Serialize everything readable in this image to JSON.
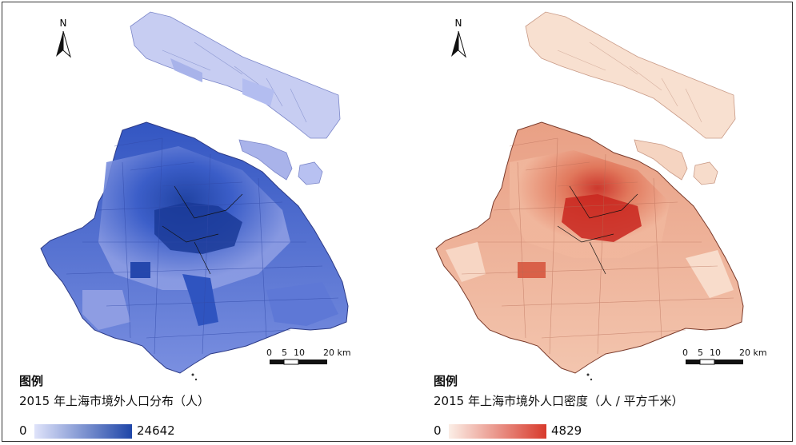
{
  "left_panel": {
    "legend_title": "图例",
    "legend_subtitle": "2015 年上海市境外人口分布（人）",
    "legend_min": "0",
    "legend_max": "24642",
    "ramp_start": "#dfe3fa",
    "ramp_end": "#1f46a8",
    "scale_labels": [
      "0",
      "5",
      "10",
      "20 km"
    ],
    "north_label": "N"
  },
  "right_panel": {
    "legend_title": "图例",
    "legend_subtitle": "2015 年上海市境外人口密度（人 / 平方千米）",
    "legend_min": "0",
    "legend_max": "4829",
    "ramp_start": "#fbeee6",
    "ramp_end": "#d83a2c",
    "scale_labels": [
      "0",
      "5",
      "10",
      "20 km"
    ],
    "north_label": "N"
  },
  "colors": {
    "blue_light": "#c5cbf1",
    "blue_mid": "#6f84dc",
    "blue_dark": "#1f46a8",
    "red_light": "#f9e3d6",
    "red_mid": "#e8a184",
    "red_dark": "#d03a2c"
  }
}
